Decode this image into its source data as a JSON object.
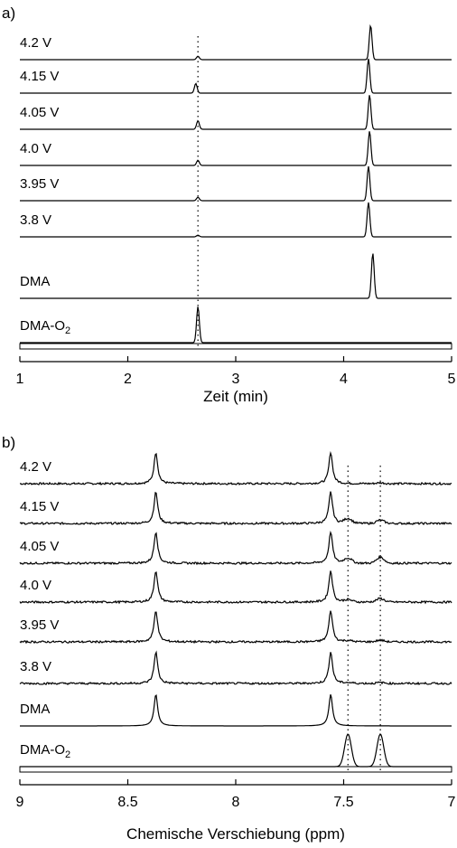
{
  "chart_data": [
    {
      "panel_label": "a)",
      "type": "line",
      "xlabel": "Zeit (min)",
      "xlim": [
        1,
        5
      ],
      "xticks": [
        "1",
        "2",
        "3",
        "4",
        "5"
      ],
      "reference_line_x": 2.65,
      "series": [
        {
          "name": "4.2 V",
          "peaks": [
            {
              "x": 2.65,
              "h": 0.1
            },
            {
              "x": 4.25,
              "h": 1.0
            }
          ]
        },
        {
          "name": "4.15 V",
          "peaks": [
            {
              "x": 2.63,
              "h": 0.28
            },
            {
              "x": 4.23,
              "h": 1.0
            }
          ]
        },
        {
          "name": "4.05 V",
          "peaks": [
            {
              "x": 2.65,
              "h": 0.25
            },
            {
              "x": 4.24,
              "h": 1.0
            }
          ]
        },
        {
          "name": "4.0 V",
          "peaks": [
            {
              "x": 2.65,
              "h": 0.15
            },
            {
              "x": 4.24,
              "h": 1.0
            }
          ]
        },
        {
          "name": "3.95 V",
          "peaks": [
            {
              "x": 2.65,
              "h": 0.1
            },
            {
              "x": 4.23,
              "h": 1.0
            }
          ]
        },
        {
          "name": "3.8 V",
          "peaks": [
            {
              "x": 2.65,
              "h": 0.05
            },
            {
              "x": 4.23,
              "h": 1.0
            }
          ]
        },
        {
          "name": "DMA",
          "peaks": [
            {
              "x": 4.27,
              "h": 1.0
            }
          ]
        },
        {
          "name": "DMA-O",
          "name_subscript": "2",
          "peaks": [
            {
              "x": 2.65,
              "h": 1.0
            }
          ]
        }
      ]
    },
    {
      "panel_label": "b)",
      "type": "line",
      "xlabel": "Chemische Verschiebung (ppm)",
      "xlim": [
        9,
        7
      ],
      "xticks": [
        "9",
        "8.5",
        "8",
        "7.5",
        "7"
      ],
      "reference_lines_x": [
        7.48,
        7.33
      ],
      "series": [
        {
          "name": "4.2 V",
          "peaks": [
            {
              "x": 7.48,
              "h": 0.0
            },
            {
              "x": 7.33,
              "h": 0.03
            }
          ]
        },
        {
          "name": "4.15 V",
          "peaks": [
            {
              "x": 7.48,
              "h": 0.17
            },
            {
              "x": 7.33,
              "h": 0.12
            }
          ]
        },
        {
          "name": "4.05 V",
          "peaks": [
            {
              "x": 7.48,
              "h": 0.18
            },
            {
              "x": 7.33,
              "h": 0.22
            }
          ]
        },
        {
          "name": "4.0 V",
          "peaks": [
            {
              "x": 7.48,
              "h": 0.08
            },
            {
              "x": 7.33,
              "h": 0.13
            }
          ]
        },
        {
          "name": "3.95 V",
          "peaks": [
            {
              "x": 7.48,
              "h": 0.04
            },
            {
              "x": 7.33,
              "h": 0.06
            }
          ]
        },
        {
          "name": "3.8 V",
          "peaks": [
            {
              "x": 7.48,
              "h": 0.02
            },
            {
              "x": 7.33,
              "h": 0.03
            }
          ]
        },
        {
          "name": "DMA",
          "peaks": []
        },
        {
          "name": "DMA-O",
          "name_subscript": "2",
          "peaks": [
            {
              "x": 7.48,
              "h": 1.0
            },
            {
              "x": 7.33,
              "h": 1.0
            }
          ]
        }
      ],
      "dma_peaks_ppm": [
        8.37,
        7.56
      ]
    }
  ]
}
